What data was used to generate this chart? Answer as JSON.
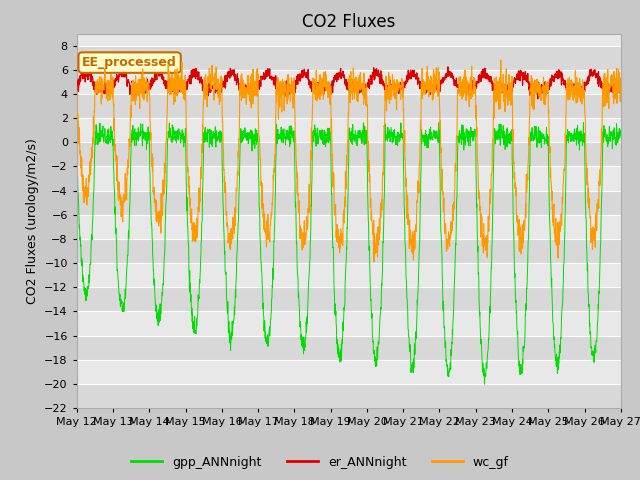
{
  "title": "CO2 Fluxes",
  "ylabel": "CO2 Fluxes (urology/m2/s)",
  "ylim": [
    -22,
    9
  ],
  "yticks": [
    -22,
    -20,
    -18,
    -16,
    -14,
    -12,
    -10,
    -8,
    -6,
    -4,
    -2,
    0,
    2,
    4,
    6,
    8
  ],
  "gpp_color": "#00dd00",
  "er_color": "#dd0000",
  "wc_color": "#ff9900",
  "legend_labels": [
    "gpp_ANNnight",
    "er_ANNnight",
    "wc_gf"
  ],
  "annotation": "EE_processed",
  "annotation_color": "#cc6600",
  "annotation_bg": "#ffffcc",
  "fig_bg": "#c8c8c8",
  "plot_bg_light": "#e8e8e8",
  "plot_bg_dark": "#d8d8d8",
  "start_day": 12,
  "end_day": 27,
  "n_points": 2000,
  "title_fontsize": 12,
  "label_fontsize": 9,
  "tick_fontsize": 8
}
